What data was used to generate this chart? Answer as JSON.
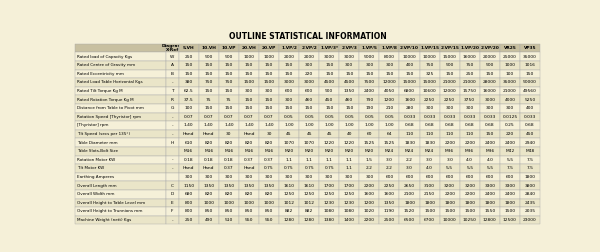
{
  "title": "OUTLINE STATISTICAL INFORMATION",
  "bg_color": "#f5f0d8",
  "columns": [
    "",
    "Diagram\nX-Ref",
    "5.VH",
    "10.VH",
    "10.VP",
    "20.VH",
    "20.VP",
    "1.VP/2",
    "2.VP/2",
    "1.VP/3*",
    "2.VP/3",
    "1.VP/5",
    "1.VP/8",
    "2.VP/10",
    "1.VP/15",
    "2.VP/15",
    "1.VP/20",
    "2.VP/20",
    "VR25",
    "VP35"
  ],
  "rows": [
    [
      "Rated load of Capacity Kgs",
      "W",
      "250",
      "500",
      "500",
      "1000",
      "1000",
      "2000",
      "2000",
      "3000",
      "3000",
      "5000",
      "8000",
      "10000",
      "10000",
      "15000",
      "16000",
      "20000",
      "25000",
      "35000"
    ],
    [
      "Rated Centre of Gravity mm",
      "A",
      "150",
      "150",
      "150",
      "150",
      "150",
      "150",
      "300",
      "150",
      "300",
      "300",
      "300",
      "400",
      "750",
      "500",
      "750",
      "500",
      "1000",
      "1016"
    ],
    [
      "Rated Eccentricity mm",
      "B",
      "150",
      "150",
      "150",
      "150",
      "150",
      "150",
      "220",
      "150",
      "150",
      "150",
      "150",
      "150",
      "325",
      "150",
      "250",
      "150",
      "100",
      "150"
    ],
    [
      "Rated Load Table Horizontal Kgs",
      "-",
      "380",
      "750",
      "750",
      "1500",
      "1500",
      "3000",
      "3000",
      "4500",
      "4500",
      "7500",
      "12000",
      "15000",
      "15000",
      "21000",
      "21000",
      "28000",
      "35000",
      "50000"
    ],
    [
      "Rated Tilt Torque Kg M",
      "T",
      "62.5",
      "150",
      "150",
      "300",
      "300",
      "600",
      "600",
      "900",
      "1350",
      "2400",
      "4050",
      "6800",
      "10600",
      "12000",
      "15750",
      "16000",
      "21000",
      "49560"
    ],
    [
      "Rated Rotation Torque Kg M",
      "R",
      "37.5",
      "75",
      "75",
      "150",
      "150",
      "300",
      "460",
      "450",
      "460",
      "790",
      "1200",
      "1600",
      "2250",
      "2250",
      "3750",
      "3000",
      "4000",
      "5250"
    ],
    [
      "Distance from Table to Pivot mm",
      "G",
      "100",
      "150",
      "150",
      "150",
      "150",
      "150",
      "150",
      "150",
      "150",
      "190",
      "210",
      "280",
      "300",
      "300",
      "300",
      "300",
      "300",
      "400"
    ],
    [
      "Rotation Speed [Thyristor] rpm",
      "-",
      "0.07",
      "0.07",
      "0.07",
      "0.07",
      "0.07",
      "0.05",
      "0.05",
      "0.05",
      "0.05",
      "0.05",
      "0.05",
      "0.033",
      "0.033",
      "0.033",
      "0.033",
      "0.033",
      "0.0125",
      "0.033"
    ],
    [
      "[Thyristor] rpm",
      "-",
      "1.40",
      "1.40",
      "1.40",
      "1.40",
      "1.40",
      "1.00",
      "1.00",
      "1.00",
      "1.00",
      "1.00",
      "1.00",
      "0.68",
      "0.68",
      "0.68",
      "0.68",
      "0.68",
      "0.25",
      "0.68"
    ],
    [
      "Tilt Speed (secs per 135°)",
      "-",
      "Hand",
      "Hand",
      "30",
      "Hand",
      "30",
      "45",
      "45",
      "45",
      "40",
      "60",
      "64",
      "110",
      "110",
      "110",
      "110",
      "150",
      "220",
      "450"
    ],
    [
      "Table Diameter mm",
      "H",
      "610",
      "820",
      "820",
      "820",
      "820",
      "1070",
      "1070",
      "1220",
      "1220",
      "1525",
      "1525",
      "1830",
      "1830",
      "2200",
      "2200",
      "2400",
      "2400",
      "2940"
    ],
    [
      "Table Slots-Bolt Size",
      "",
      "M16",
      "M16",
      "M16",
      "M16",
      "M16",
      "M20",
      "M20",
      "M20",
      "M20",
      "M20",
      "M24",
      "M24",
      "M24",
      "M36",
      "M36",
      "M36",
      "M42",
      "M48"
    ],
    [
      "Rotation Motor KW",
      "-",
      "0.18",
      "0.18",
      "0.18",
      "0.37",
      "0.37",
      "1.1",
      "1.1",
      "1.1",
      "1.1",
      "1.5",
      "3.0",
      "2.2",
      "3.0",
      "3.0",
      "4.0",
      "4.0",
      "5.5",
      "7.5"
    ],
    [
      "Tilt Motor KW",
      "-",
      "Hand",
      "Hand",
      "0.37",
      "Hand",
      "0.75",
      "0.75",
      "0.75",
      "0.75",
      "1.1",
      "2.2",
      "2.2",
      "3.0",
      "4.0",
      "5.5",
      "5.5",
      "5.5",
      "7.5",
      "7.5"
    ],
    [
      "Earthing Amperes",
      "",
      "300",
      "300",
      "300",
      "300",
      "300",
      "300",
      "300",
      "300",
      "300",
      "300",
      "600",
      "600",
      "600",
      "600",
      "600",
      "600",
      "600",
      "1800"
    ],
    [
      "Overall Length mm",
      "C",
      "1150",
      "1350",
      "1350",
      "1350",
      "1350",
      "1610",
      "1610",
      "1700",
      "1700",
      "2200",
      "2250",
      "2650",
      "3100",
      "3200",
      "3200",
      "3300",
      "3300",
      "3800"
    ],
    [
      "Overall Width mm",
      "D",
      "680",
      "820",
      "820",
      "820",
      "820",
      "1250",
      "1250",
      "1250",
      "1250",
      "1600",
      "1600",
      "2100",
      "2150",
      "2200",
      "2200",
      "2400",
      "2400",
      "2840"
    ],
    [
      "Overall Height to Table Level mm",
      "E",
      "800",
      "1000",
      "1000",
      "1000",
      "1000",
      "1012",
      "1012",
      "1230",
      "1230",
      "1200",
      "1350",
      "1800",
      "1800",
      "1800",
      "1800",
      "1800",
      "1800",
      "2435"
    ],
    [
      "Overall Height to Trunnions mm",
      "F",
      "800",
      "850",
      "850",
      "850",
      "850",
      "882",
      "882",
      "1080",
      "1080",
      "1020",
      "1190",
      "1520",
      "1500",
      "1500",
      "1500",
      "1550",
      "1500",
      "2035"
    ],
    [
      "Machine Weight (nett) Kgs",
      "-",
      "250",
      "490",
      "510",
      "550",
      "550",
      "1280",
      "1280",
      "1380",
      "1400",
      "2200",
      "2500",
      "6500",
      "6700",
      "10000",
      "10250",
      "12800",
      "12500",
      "23000"
    ]
  ]
}
